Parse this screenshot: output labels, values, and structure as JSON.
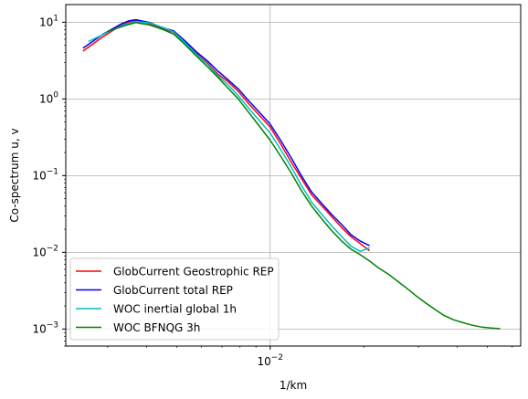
{
  "chart_data": {
    "type": "line",
    "title": "",
    "xlabel": "1/km",
    "ylabel": "Co-spectrum u, v",
    "xscale": "log",
    "yscale": "log",
    "xlim": [
      0.0022,
      0.064
    ],
    "ylim": [
      0.0006,
      17
    ],
    "grid": true,
    "legend_position": "lower-left",
    "x_ticks": [
      {
        "value": 0.01,
        "label": "10^-2"
      }
    ],
    "y_ticks": [
      {
        "value": 0.001,
        "label": "10^-3"
      },
      {
        "value": 0.01,
        "label": "10^-2"
      },
      {
        "value": 0.1,
        "label": "10^-1"
      },
      {
        "value": 1,
        "label": "10^0"
      },
      {
        "value": 10,
        "label": "10^1"
      }
    ],
    "series": [
      {
        "name": "GlobCurrent Geostrophic REP",
        "color": "#ff0000",
        "x": [
          0.0025,
          0.0029,
          0.0033,
          0.0035,
          0.0037,
          0.0041,
          0.0045,
          0.0049,
          0.0053,
          0.0058,
          0.0063,
          0.0068,
          0.0073,
          0.0079,
          0.0085,
          0.0092,
          0.01,
          0.0108,
          0.0117,
          0.0126,
          0.0136,
          0.0147,
          0.0158,
          0.017,
          0.0182,
          0.0195,
          0.0209
        ],
        "y": [
          4.2,
          6.5,
          9.0,
          10.0,
          10.4,
          9.6,
          8.3,
          7.4,
          5.5,
          3.9,
          2.9,
          2.1,
          1.7,
          1.25,
          0.88,
          0.62,
          0.43,
          0.26,
          0.15,
          0.092,
          0.056,
          0.04,
          0.029,
          0.021,
          0.016,
          0.013,
          0.0105
        ]
      },
      {
        "name": "GlobCurrent total REP",
        "color": "#0000ff",
        "x": [
          0.0025,
          0.0029,
          0.0033,
          0.0035,
          0.0037,
          0.0041,
          0.0045,
          0.0049,
          0.0053,
          0.0058,
          0.0063,
          0.0068,
          0.0073,
          0.0079,
          0.0085,
          0.0092,
          0.01,
          0.0108,
          0.0117,
          0.0126,
          0.0136,
          0.0147,
          0.0158,
          0.017,
          0.0182,
          0.0195,
          0.0209
        ],
        "y": [
          4.6,
          7.0,
          9.4,
          10.4,
          10.8,
          9.9,
          8.5,
          7.7,
          5.8,
          4.1,
          3.1,
          2.3,
          1.8,
          1.35,
          0.96,
          0.68,
          0.47,
          0.29,
          0.17,
          0.1,
          0.061,
          0.043,
          0.031,
          0.023,
          0.017,
          0.014,
          0.0122
        ]
      },
      {
        "name": "WOC inertial global 1h",
        "color": "#00bfbf",
        "x": [
          0.0026,
          0.003,
          0.0034,
          0.0037,
          0.0041,
          0.0045,
          0.0049,
          0.0053,
          0.0058,
          0.0063,
          0.0068,
          0.0073,
          0.0079,
          0.0085,
          0.0092,
          0.01,
          0.0108,
          0.0117,
          0.0126,
          0.0136,
          0.0147,
          0.0158,
          0.017,
          0.0182,
          0.0195,
          0.0209
        ],
        "y": [
          5.6,
          7.4,
          9.3,
          10.2,
          9.8,
          8.6,
          7.5,
          5.5,
          3.8,
          2.8,
          2.0,
          1.55,
          1.1,
          0.77,
          0.53,
          0.36,
          0.22,
          0.13,
          0.075,
          0.045,
          0.031,
          0.022,
          0.016,
          0.012,
          0.0103,
          0.0115
        ]
      },
      {
        "name": "WOC BFNQG 3h",
        "color": "#008000",
        "x": [
          0.003,
          0.0034,
          0.0037,
          0.0041,
          0.0045,
          0.0049,
          0.0053,
          0.0058,
          0.0063,
          0.0068,
          0.0073,
          0.0079,
          0.0085,
          0.0092,
          0.01,
          0.0108,
          0.0117,
          0.0126,
          0.0136,
          0.0147,
          0.0158,
          0.017,
          0.0182,
          0.0195,
          0.0209,
          0.0224,
          0.024,
          0.0257,
          0.0275,
          0.0295,
          0.0316,
          0.0339,
          0.0363,
          0.0389,
          0.0417,
          0.0447,
          0.0479,
          0.0513,
          0.055
        ],
        "y": [
          7.6,
          9.0,
          9.9,
          9.2,
          8.1,
          7.0,
          5.2,
          3.6,
          2.6,
          1.9,
          1.4,
          1.0,
          0.68,
          0.45,
          0.29,
          0.18,
          0.108,
          0.064,
          0.04,
          0.027,
          0.019,
          0.014,
          0.011,
          0.0093,
          0.0077,
          0.0062,
          0.0052,
          0.0042,
          0.0034,
          0.0027,
          0.0022,
          0.0018,
          0.0015,
          0.00132,
          0.00121,
          0.00112,
          0.00106,
          0.00103,
          0.00101
        ]
      }
    ]
  }
}
